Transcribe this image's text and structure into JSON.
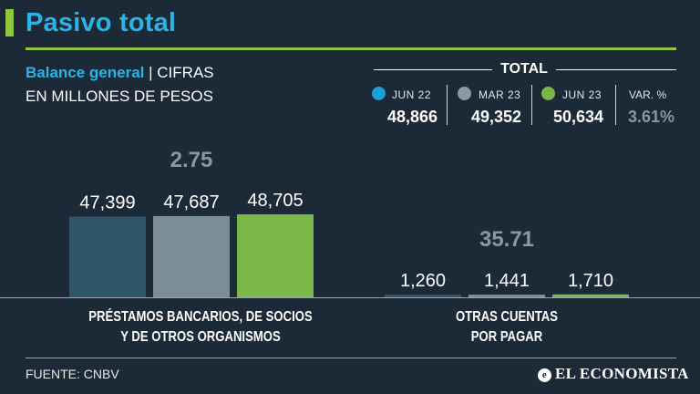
{
  "colors": {
    "accent": "#8dc63f",
    "title": "#2ab4e6",
    "bar_jun22": "#2f5566",
    "bar_mar23": "#7b8e98",
    "bar_jun23": "#7ab648",
    "dot_jun22": "#1aa0d8",
    "dot_mar23": "#8a9aa3",
    "dot_jun23": "#7ab648",
    "variation": "#8b97a0"
  },
  "header": {
    "title": "Pasivo total",
    "subtitle_bold": "Balance general",
    "subtitle_sep": " | ",
    "subtitle_rest_1": "CIFRAS",
    "subtitle_rest_2": "EN MILLONES DE PESOS"
  },
  "totals": {
    "label": "TOTAL",
    "items": [
      {
        "period": "JUN 22",
        "value": "48,866"
      },
      {
        "period": "MAR 23",
        "value": "49,352"
      },
      {
        "period": "JUN 23",
        "value": "50,634"
      }
    ],
    "variation_label": "VAR. %",
    "variation_value": "3.61%"
  },
  "chart_data": {
    "type": "bar",
    "categories": [
      "PRÉSTAMOS BANCARIOS, DE SOCIOS Y DE OTROS ORGANISMOS",
      "OTRAS CUENTAS POR PAGAR"
    ],
    "category_lines": [
      [
        "PRÉSTAMOS BANCARIOS, DE SOCIOS",
        "Y DE OTROS ORGANISMOS"
      ],
      [
        "OTRAS CUENTAS",
        "POR PAGAR"
      ]
    ],
    "series": [
      {
        "name": "JUN 22",
        "values": [
          47399,
          1260
        ],
        "labels": [
          "47,399",
          "1,260"
        ]
      },
      {
        "name": "MAR 23",
        "values": [
          47687,
          1441
        ],
        "labels": [
          "47,687",
          "1,441"
        ]
      },
      {
        "name": "JUN 23",
        "values": [
          48705,
          1710
        ],
        "labels": [
          "48,705",
          "1,710"
        ]
      }
    ],
    "variation_labels": [
      "2.75",
      "35.71"
    ],
    "ylim": [
      0,
      50000
    ],
    "grid": false,
    "legend": "top-right"
  },
  "footer": {
    "source": "FUENTE: CNBV",
    "logo_mark": "e",
    "logo_text": "EL ECONOMISTA"
  }
}
